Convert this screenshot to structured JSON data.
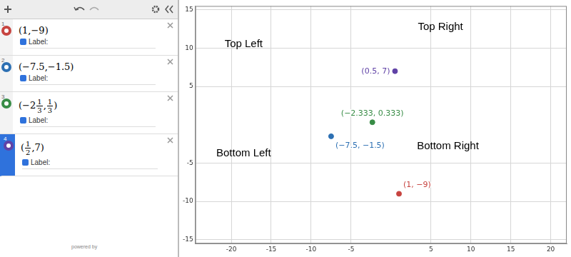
{
  "panel": {
    "expressions": [
      {
        "number": "1",
        "color": "#c74440",
        "tokens": [
          "(1,−9)"
        ],
        "label_toggle": "Label:"
      },
      {
        "number": "2",
        "color": "#2d70b3",
        "tokens": [
          "(−7.5,−1.5)"
        ],
        "label_toggle": "Label:"
      },
      {
        "number": "3",
        "color": "#388c46",
        "tokens": [
          "(−2",
          {
            "num": "1",
            "den": "3"
          },
          ",",
          {
            "num": "1",
            "den": "3"
          },
          ")"
        ],
        "label_toggle": "Label:"
      },
      {
        "number": "4",
        "color": "#6042a6",
        "tokens": [
          "(",
          {
            "num": "1",
            "den": "2"
          },
          ",7)"
        ],
        "label_toggle": "Label:",
        "selected": true
      }
    ],
    "footer": "powered by"
  },
  "chart_data": {
    "type": "scatter",
    "x": [
      1,
      -7.5,
      -2.333,
      0.5
    ],
    "values": [
      -9,
      -1.5,
      0.333,
      7
    ],
    "colors": [
      "#c74440",
      "#2d70b3",
      "#388c46",
      "#6042a6"
    ],
    "data_labels": true,
    "value_labels": [
      "(1, −9)",
      "(−7.5, −1.5)",
      "(−2.333, 0.333)",
      "(0.5, 7)"
    ],
    "xlim": [
      -24.5,
      22
    ],
    "ylim": [
      -15.5,
      15.5
    ],
    "xticks": [
      -20,
      -15,
      -10,
      -5,
      5,
      10,
      15,
      20
    ],
    "yticks": [
      -15,
      -10,
      -5,
      5,
      10,
      15
    ],
    "grid": true,
    "annotations": [
      "Top Left",
      "Top Right",
      "Bottom Left",
      "Bottom Right"
    ]
  }
}
